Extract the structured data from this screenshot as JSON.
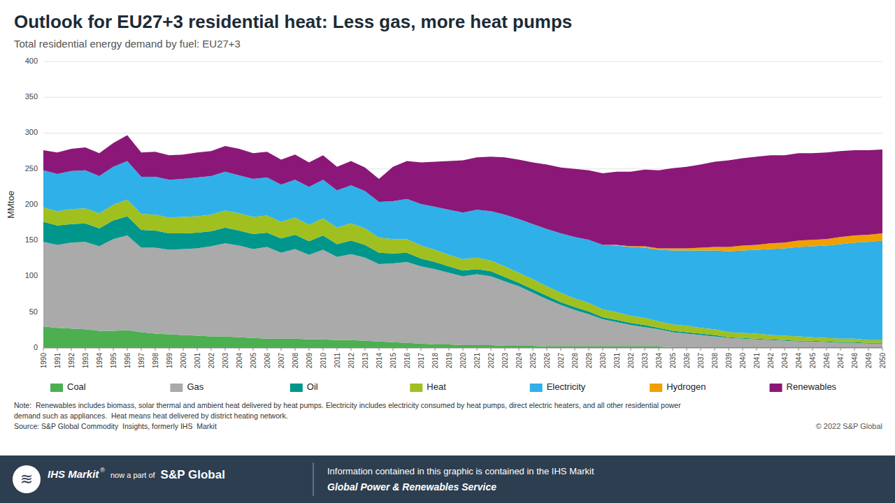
{
  "chart_data": {
    "type": "area",
    "stacked": true,
    "title": "Outlook for EU27+3 residential heat: Less gas, more heat pumps",
    "subtitle": "Total residential energy demand by fuel: EU27+3",
    "y_label": "MMtoe",
    "grid": true,
    "legend": "bottom",
    "xlim": [
      1990,
      2050
    ],
    "ylim": [
      0,
      400
    ],
    "yticks": [
      0,
      50,
      100,
      150,
      200,
      250,
      300,
      350,
      400
    ],
    "x": [
      1990,
      1991,
      1992,
      1993,
      1994,
      1995,
      1996,
      1997,
      1998,
      1999,
      2000,
      2001,
      2002,
      2003,
      2004,
      2005,
      2006,
      2007,
      2008,
      2009,
      2010,
      2011,
      2012,
      2013,
      2014,
      2015,
      2016,
      2017,
      2018,
      2019,
      2020,
      2021,
      2022,
      2023,
      2024,
      2025,
      2026,
      2027,
      2028,
      2029,
      2030,
      2031,
      2032,
      2033,
      2034,
      2035,
      2036,
      2037,
      2038,
      2039,
      2040,
      2041,
      2042,
      2043,
      2044,
      2045,
      2046,
      2047,
      2048,
      2049,
      2050
    ],
    "xticks": [
      1990,
      1991,
      1992,
      1993,
      1994,
      1995,
      1996,
      1997,
      1998,
      1999,
      2000,
      2001,
      2002,
      2003,
      2004,
      2005,
      2006,
      2007,
      2008,
      2009,
      2010,
      2011,
      2012,
      2013,
      2014,
      2015,
      2016,
      2017,
      2018,
      2019,
      2020,
      2021,
      2022,
      2023,
      2024,
      2025,
      2026,
      2027,
      2028,
      2029,
      2030,
      2031,
      2032,
      2033,
      2034,
      2035,
      2036,
      2037,
      2038,
      2039,
      2040,
      2041,
      2042,
      2043,
      2044,
      2045,
      2046,
      2047,
      2048,
      2049,
      2050
    ],
    "series": [
      {
        "name": "Coal",
        "color": "#4caf50",
        "values": [
          30,
          28,
          27,
          26,
          24,
          24,
          25,
          22,
          20,
          19,
          18,
          17,
          16,
          16,
          15,
          14,
          13,
          13,
          13,
          12,
          12,
          11,
          11,
          10,
          9,
          8,
          7,
          6,
          5,
          5,
          4,
          4,
          4,
          3,
          3,
          3,
          2,
          2,
          2,
          2,
          2,
          2,
          2,
          2,
          2,
          1,
          1,
          1,
          1,
          1,
          1,
          1,
          1,
          1,
          1,
          1,
          1,
          1,
          1,
          1,
          1
        ]
      },
      {
        "name": "Gas",
        "color": "#aaaaaa",
        "values": [
          118,
          116,
          120,
          122,
          118,
          128,
          132,
          118,
          120,
          118,
          120,
          122,
          126,
          130,
          128,
          124,
          128,
          120,
          125,
          118,
          125,
          116,
          120,
          116,
          108,
          110,
          113,
          108,
          105,
          100,
          96,
          99,
          96,
          90,
          83,
          74,
          66,
          58,
          51,
          45,
          38,
          34,
          30,
          27,
          24,
          21,
          19,
          17,
          15,
          13,
          12,
          11,
          10,
          9,
          8,
          8,
          7,
          6,
          6,
          5,
          5
        ]
      },
      {
        "name": "Oil",
        "color": "#00968c",
        "values": [
          28,
          27,
          26,
          26,
          25,
          26,
          27,
          25,
          24,
          23,
          22,
          22,
          21,
          22,
          21,
          21,
          20,
          20,
          20,
          19,
          20,
          18,
          19,
          18,
          16,
          14,
          13,
          11,
          10,
          9,
          8,
          7,
          7,
          6,
          5,
          5,
          5,
          4,
          4,
          4,
          3,
          3,
          3,
          3,
          2,
          2,
          2,
          2,
          2,
          1,
          1,
          1,
          1,
          1,
          1,
          1,
          1,
          1,
          1,
          1,
          1
        ]
      },
      {
        "name": "Heat",
        "color": "#a0c020",
        "values": [
          20,
          20,
          21,
          21,
          21,
          22,
          23,
          22,
          22,
          22,
          23,
          23,
          23,
          24,
          24,
          24,
          24,
          23,
          24,
          23,
          24,
          23,
          24,
          23,
          21,
          20,
          19,
          18,
          17,
          16,
          16,
          16,
          15,
          15,
          14,
          14,
          13,
          13,
          12,
          12,
          11,
          11,
          10,
          10,
          9,
          9,
          9,
          8,
          8,
          7,
          7,
          7,
          6,
          6,
          6,
          5,
          5,
          5,
          5,
          4,
          4
        ]
      },
      {
        "name": "Electricity",
        "color": "#30b0e8",
        "values": [
          52,
          52,
          53,
          53,
          52,
          53,
          54,
          52,
          53,
          53,
          53,
          54,
          54,
          54,
          53,
          53,
          53,
          52,
          53,
          53,
          54,
          52,
          53,
          52,
          50,
          53,
          56,
          58,
          60,
          63,
          65,
          67,
          69,
          72,
          75,
          77,
          80,
          83,
          86,
          88,
          90,
          93,
          96,
          98,
          100,
          103,
          105,
          108,
          110,
          113,
          115,
          117,
          120,
          122,
          125,
          127,
          129,
          132,
          134,
          137,
          139
        ]
      },
      {
        "name": "Hydrogen",
        "color": "#f0a000",
        "values": [
          0,
          0,
          0,
          0,
          0,
          0,
          0,
          0,
          0,
          0,
          0,
          0,
          0,
          0,
          0,
          0,
          0,
          0,
          0,
          0,
          0,
          0,
          0,
          0,
          0,
          0,
          0,
          0,
          0,
          0,
          0,
          0,
          0,
          0,
          0,
          0,
          0,
          0,
          0,
          0,
          0,
          1,
          1,
          2,
          2,
          3,
          3,
          4,
          5,
          6,
          7,
          7,
          8,
          8,
          9,
          9,
          9,
          10,
          10,
          10,
          10
        ]
      },
      {
        "name": "Renewables",
        "color": "#8b1878",
        "values": [
          28,
          30,
          31,
          32,
          32,
          33,
          36,
          34,
          35,
          34,
          34,
          35,
          35,
          36,
          37,
          36,
          36,
          35,
          35,
          34,
          34,
          33,
          34,
          33,
          32,
          48,
          53,
          58,
          63,
          68,
          73,
          73,
          76,
          80,
          83,
          86,
          90,
          92,
          95,
          97,
          100,
          102,
          104,
          107,
          109,
          112,
          114,
          116,
          119,
          121,
          122,
          123,
          123,
          122,
          122,
          121,
          121,
          120,
          119,
          118,
          117
        ]
      }
    ],
    "annotations": [
      "Note:  Renewables includes biomass, solar thermal and ambient heat delivered by heat pumps. Electricity includes electricity consumed by heat pumps, direct electric heaters, and all other residential power",
      "demand such as appliances.  Heat means heat delivered by district heating network.",
      "Source: S&P Global Commodity  Insights, formerly IHS  Markit",
      "© 2022 S&P Global",
      "≋",
      "IHS Markit",
      "®",
      "now a part of",
      "S&P Global",
      "Information contained in this graphic is contained in the IHS Markit",
      "Global Power & Renewables Service"
    ]
  }
}
